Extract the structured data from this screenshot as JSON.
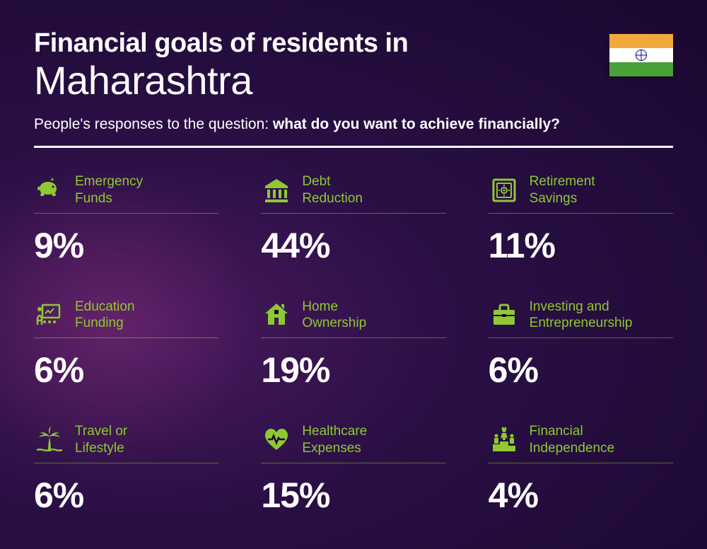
{
  "header": {
    "title_prefix": "Financial goals of residents in",
    "title_main": "Maharashtra",
    "subtitle_plain": "People's responses to the question: ",
    "subtitle_bold": "what do you want to achieve financially?"
  },
  "flag": {
    "top_color": "#f2a93b",
    "mid_color": "#ffffff",
    "bottom_color": "#4aa038",
    "chakra_color": "#000080"
  },
  "styling": {
    "accent_color": "#8fc832",
    "text_color": "#ffffff",
    "title_small_fontsize": 38,
    "title_big_fontsize": 56,
    "subtitle_fontsize": 21,
    "label_fontsize": 19,
    "value_fontsize": 50,
    "divider_color": "#ffffff",
    "background_gradient": [
      "#4a1a5e",
      "#2a0f45",
      "#1a0830"
    ]
  },
  "items": [
    {
      "label": "Emergency\nFunds",
      "value": "9%",
      "icon": "piggy-bank"
    },
    {
      "label": "Debt\nReduction",
      "value": "44%",
      "icon": "bank"
    },
    {
      "label": "Retirement\nSavings",
      "value": "11%",
      "icon": "safe"
    },
    {
      "label": "Education\nFunding",
      "value": "6%",
      "icon": "presentation"
    },
    {
      "label": "Home\nOwnership",
      "value": "19%",
      "icon": "house"
    },
    {
      "label": "Investing and\nEntrepreneurship",
      "value": "6%",
      "icon": "briefcase"
    },
    {
      "label": "Travel or\nLifestyle",
      "value": "6%",
      "icon": "palm"
    },
    {
      "label": "Healthcare\nExpenses",
      "value": "15%",
      "icon": "heart-pulse"
    },
    {
      "label": "Financial\nIndependence",
      "value": "4%",
      "icon": "podium"
    }
  ]
}
